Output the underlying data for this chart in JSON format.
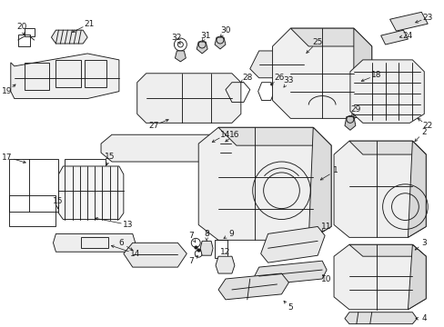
{
  "bg_color": "#ffffff",
  "fg_color": "#1a1a1a",
  "fig_width": 4.89,
  "fig_height": 3.6,
  "dpi": 100
}
